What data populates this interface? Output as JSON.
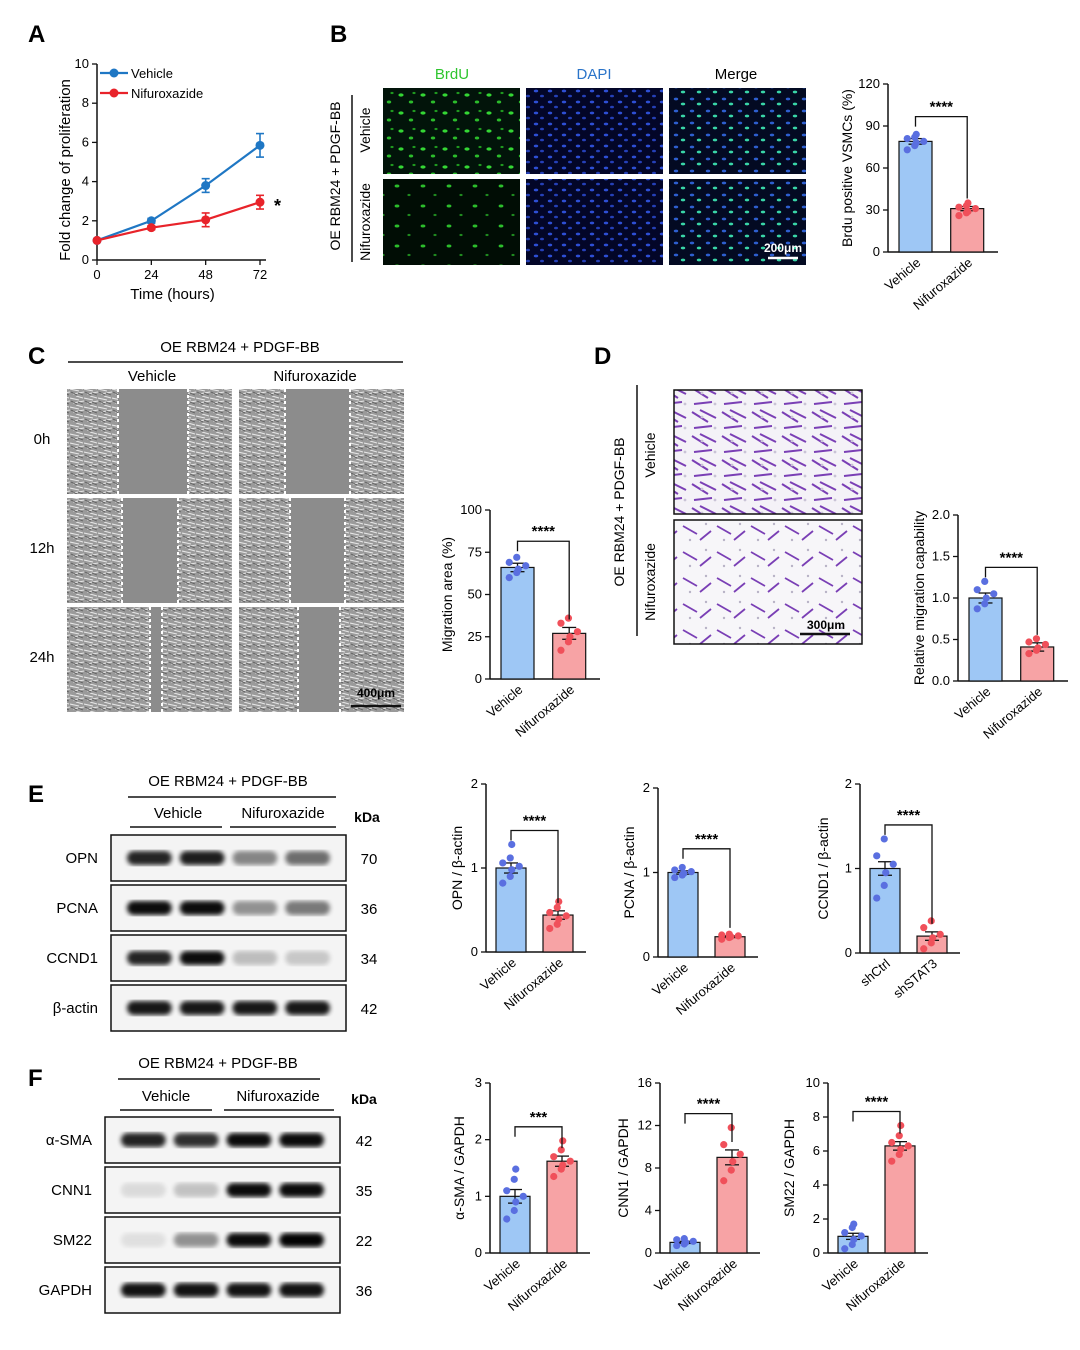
{
  "colors": {
    "vehicle": "#1f77c4",
    "nifuroxazide": "#e8232a",
    "bar_vehicle": "#9ec7f5",
    "bar_nifuroxazide": "#f7a3a5",
    "dot_vehicle": "#5a6fe0",
    "dot_nifuroxazide": "#f0505a",
    "brdu_green": "#2ec52e",
    "dapi_blue": "#2a74c9",
    "crystal_violet": "#7a3fb5"
  },
  "panels": {
    "A": {
      "letter": "A",
      "xlabel": "Time (hours)",
      "ylabel": "Fold change of proliferation",
      "xticks": [
        "0",
        "24",
        "48",
        "72"
      ],
      "yticks": [
        "0",
        "2",
        "4",
        "6",
        "8",
        "10"
      ],
      "legend": [
        "Vehicle",
        "Nifuroxazide"
      ],
      "sig": "*"
    },
    "B": {
      "letter": "B",
      "columns": [
        "BrdU",
        "DAPI",
        "Merge"
      ],
      "group_label": "OE RBM24 + PDGF-BB",
      "rows": [
        "Vehicle",
        "Nifuroxazide"
      ],
      "scale_bar": "200μm",
      "ylabel": "Brdu positive VSMCs (%)",
      "yticks": [
        "0",
        "30",
        "60",
        "90",
        "120"
      ],
      "categories": [
        "Vehicle",
        "Nifuroxazide"
      ],
      "sig": "****"
    },
    "C": {
      "letter": "C",
      "group_label": "OE RBM24 + PDGF-BB",
      "columns": [
        "Vehicle",
        "Nifuroxazide"
      ],
      "rows": [
        "0h",
        "12h",
        "24h"
      ],
      "scale_bar": "400μm",
      "ylabel": "Migration area (%)",
      "yticks": [
        "0",
        "25",
        "50",
        "75",
        "100"
      ],
      "categories": [
        "Vehicle",
        "Nifuroxazide"
      ],
      "sig": "****"
    },
    "D": {
      "letter": "D",
      "group_label": "OE RBM24 + PDGF-BB",
      "rows": [
        "Vehicle",
        "Nifuroxazide"
      ],
      "scale_bar": "300μm",
      "ylabel": "Relative migration capability",
      "yticks": [
        "0.0",
        "0.5",
        "1.0",
        "1.5",
        "2.0"
      ],
      "categories": [
        "Vehicle",
        "Nifuroxazide"
      ],
      "sig": "****"
    },
    "E": {
      "letter": "E",
      "group_label": "OE RBM24 + PDGF-BB",
      "columns": [
        "Vehicle",
        "Nifuroxazide"
      ],
      "kda_label": "kDa",
      "proteins": [
        "OPN",
        "PCNA",
        "CCND1",
        "β-actin"
      ],
      "kda": [
        "70",
        "36",
        "34",
        "42"
      ]
    },
    "F": {
      "letter": "F",
      "group_label": "OE RBM24 + PDGF-BB",
      "columns": [
        "Vehicle",
        "Nifuroxazide"
      ],
      "kda_label": "kDa",
      "proteins": [
        "α-SMA",
        "CNN1",
        "SM22",
        "GAPDH"
      ],
      "kda": [
        "42",
        "35",
        "22",
        "36"
      ]
    }
  },
  "chart_data": [
    {
      "id": "A",
      "type": "line",
      "x": [
        0,
        24,
        48,
        72
      ],
      "xlim": [
        0,
        72
      ],
      "ylim": [
        0,
        10
      ],
      "xlabel": "Time (hours)",
      "ylabel": "Fold change of proliferation",
      "series": [
        {
          "name": "Vehicle",
          "values": [
            1.0,
            2.0,
            3.8,
            5.85
          ],
          "errors": [
            0.05,
            0.12,
            0.35,
            0.6
          ]
        },
        {
          "name": "Nifuroxazide",
          "values": [
            1.0,
            1.65,
            2.05,
            2.95
          ],
          "errors": [
            0.05,
            0.1,
            0.35,
            0.35
          ]
        }
      ],
      "legend": "top-left",
      "annotation": "*"
    },
    {
      "id": "B",
      "type": "bar",
      "categories": [
        "Vehicle",
        "Nifuroxazide"
      ],
      "values": [
        79,
        31
      ],
      "errors": [
        2,
        1.5
      ],
      "ylim": [
        0,
        120
      ],
      "ylabel": "Brdu positive VSMCs (%)",
      "annotation": "****",
      "points": [
        [
          73,
          76,
          78,
          79,
          81,
          82,
          84
        ],
        [
          26,
          28,
          29,
          31,
          32,
          33,
          35
        ]
      ]
    },
    {
      "id": "C",
      "type": "bar",
      "categories": [
        "Vehicle",
        "Nifuroxazide"
      ],
      "values": [
        66,
        27
      ],
      "errors": [
        2.5,
        3.5
      ],
      "ylim": [
        0,
        100
      ],
      "ylabel": "Migration area (%)",
      "annotation": "****",
      "points": [
        [
          60,
          63,
          65,
          67,
          69,
          72
        ],
        [
          17,
          22,
          25,
          28,
          33,
          36
        ]
      ]
    },
    {
      "id": "D",
      "type": "bar",
      "categories": [
        "Vehicle",
        "Nifuroxazide"
      ],
      "values": [
        1.0,
        0.41
      ],
      "errors": [
        0.06,
        0.05
      ],
      "ylim": [
        0,
        2.0
      ],
      "ylabel": "Relative migration capability",
      "annotation": "****",
      "points": [
        [
          0.87,
          0.93,
          1.0,
          1.05,
          1.1,
          1.2
        ],
        [
          0.33,
          0.37,
          0.4,
          0.44,
          0.47,
          0.51
        ]
      ]
    },
    {
      "id": "E1",
      "type": "bar",
      "categories": [
        "Vehicle",
        "Nifuroxazide"
      ],
      "values": [
        1.0,
        0.44
      ],
      "errors": [
        0.06,
        0.05
      ],
      "ylim": [
        0,
        2
      ],
      "ylabel": "OPN / β-actin",
      "annotation": "****",
      "points": [
        [
          0.82,
          0.9,
          0.98,
          1.02,
          1.06,
          1.12,
          1.28
        ],
        [
          0.28,
          0.33,
          0.39,
          0.43,
          0.47,
          0.53,
          0.6
        ]
      ]
    },
    {
      "id": "E2",
      "type": "bar",
      "categories": [
        "Vehicle",
        "Nifuroxazide"
      ],
      "values": [
        1.0,
        0.24
      ],
      "errors": [
        0.02,
        0.01
      ],
      "ylim": [
        0,
        2
      ],
      "ylabel": "PCNA / β-actin",
      "annotation": "****",
      "points": [
        [
          0.94,
          0.97,
          0.99,
          1.01,
          1.03,
          1.06
        ],
        [
          0.21,
          0.23,
          0.24,
          0.25,
          0.26,
          0.27
        ]
      ]
    },
    {
      "id": "E3",
      "type": "bar",
      "categories": [
        "shCtrl",
        "shSTAT3"
      ],
      "values": [
        1.0,
        0.2
      ],
      "errors": [
        0.08,
        0.05
      ],
      "ylim": [
        0,
        2
      ],
      "ylabel": "CCND1 / β-actin",
      "annotation": "****",
      "points": [
        [
          0.65,
          0.8,
          0.95,
          1.05,
          1.15,
          1.35
        ],
        [
          0.05,
          0.12,
          0.18,
          0.22,
          0.3,
          0.38
        ]
      ]
    },
    {
      "id": "F1",
      "type": "bar",
      "categories": [
        "Vehicle",
        "Nifuroxazide"
      ],
      "values": [
        1.0,
        1.62
      ],
      "errors": [
        0.12,
        0.09
      ],
      "ylim": [
        0,
        3
      ],
      "ylabel": "α-SMA / GAPDH",
      "annotation": "***",
      "points": [
        [
          0.6,
          0.75,
          0.9,
          1.0,
          1.1,
          1.3,
          1.48
        ],
        [
          1.35,
          1.48,
          1.55,
          1.62,
          1.7,
          1.82,
          1.98
        ]
      ]
    },
    {
      "id": "F2",
      "type": "bar",
      "categories": [
        "Vehicle",
        "Nifuroxazide"
      ],
      "values": [
        1.0,
        9.0
      ],
      "errors": [
        0.1,
        0.7
      ],
      "ylim": [
        0,
        16
      ],
      "ylabel": "CNN1 / GAPDH",
      "annotation": "****",
      "points": [
        [
          0.7,
          0.85,
          1.0,
          1.1,
          1.25,
          1.35
        ],
        [
          6.8,
          7.8,
          8.6,
          9.3,
          10.2,
          11.8
        ]
      ]
    },
    {
      "id": "F3",
      "type": "bar",
      "categories": [
        "Vehicle",
        "Nifuroxazide"
      ],
      "values": [
        0.98,
        6.3
      ],
      "errors": [
        0.18,
        0.25
      ],
      "ylim": [
        0,
        10
      ],
      "ylabel": "SM22 / GAPDH",
      "annotation": "****",
      "points": [
        [
          0.25,
          0.5,
          0.8,
          1.0,
          1.2,
          1.5,
          1.7
        ],
        [
          5.4,
          5.8,
          6.1,
          6.3,
          6.5,
          6.9,
          7.5
        ]
      ]
    }
  ]
}
